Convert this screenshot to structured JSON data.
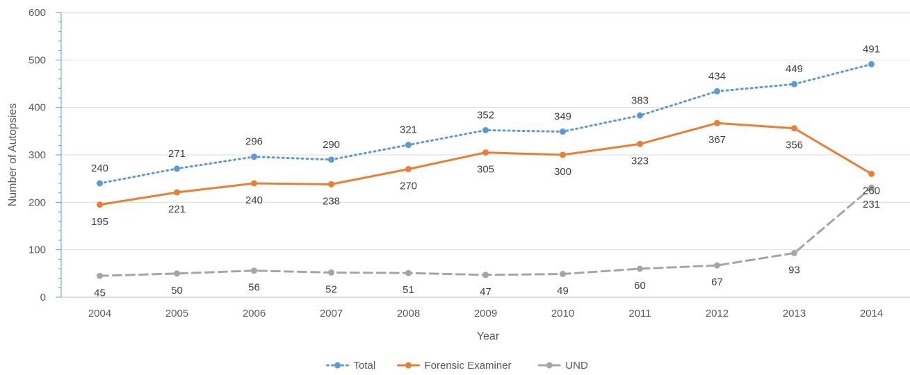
{
  "chart_data": {
    "type": "line",
    "title": "",
    "xlabel": "Year",
    "ylabel": "Number of Autopsies",
    "ylim": [
      0,
      600
    ],
    "yticks": [
      0,
      100,
      200,
      300,
      400,
      500,
      600
    ],
    "grid": true,
    "legend_position": "bottom",
    "categories": [
      "2004",
      "2005",
      "2006",
      "2007",
      "2008",
      "2009",
      "2010",
      "2011",
      "2012",
      "2013",
      "2014"
    ],
    "series": [
      {
        "name": "Total",
        "color": "#5B9BD5",
        "line_style": "dotted",
        "label_position": "above",
        "values": [
          240,
          271,
          296,
          290,
          321,
          352,
          349,
          383,
          434,
          449,
          491
        ]
      },
      {
        "name": "Forensic Examiner",
        "color": "#ED7D31",
        "line_style": "solid",
        "label_position": "below",
        "values": [
          195,
          221,
          240,
          238,
          270,
          305,
          300,
          323,
          367,
          356,
          260
        ]
      },
      {
        "name": "UND",
        "color": "#A5A5A5",
        "line_style": "dashed",
        "label_position": "below",
        "values": [
          45,
          50,
          56,
          52,
          51,
          47,
          49,
          60,
          67,
          93,
          231
        ]
      }
    ]
  }
}
